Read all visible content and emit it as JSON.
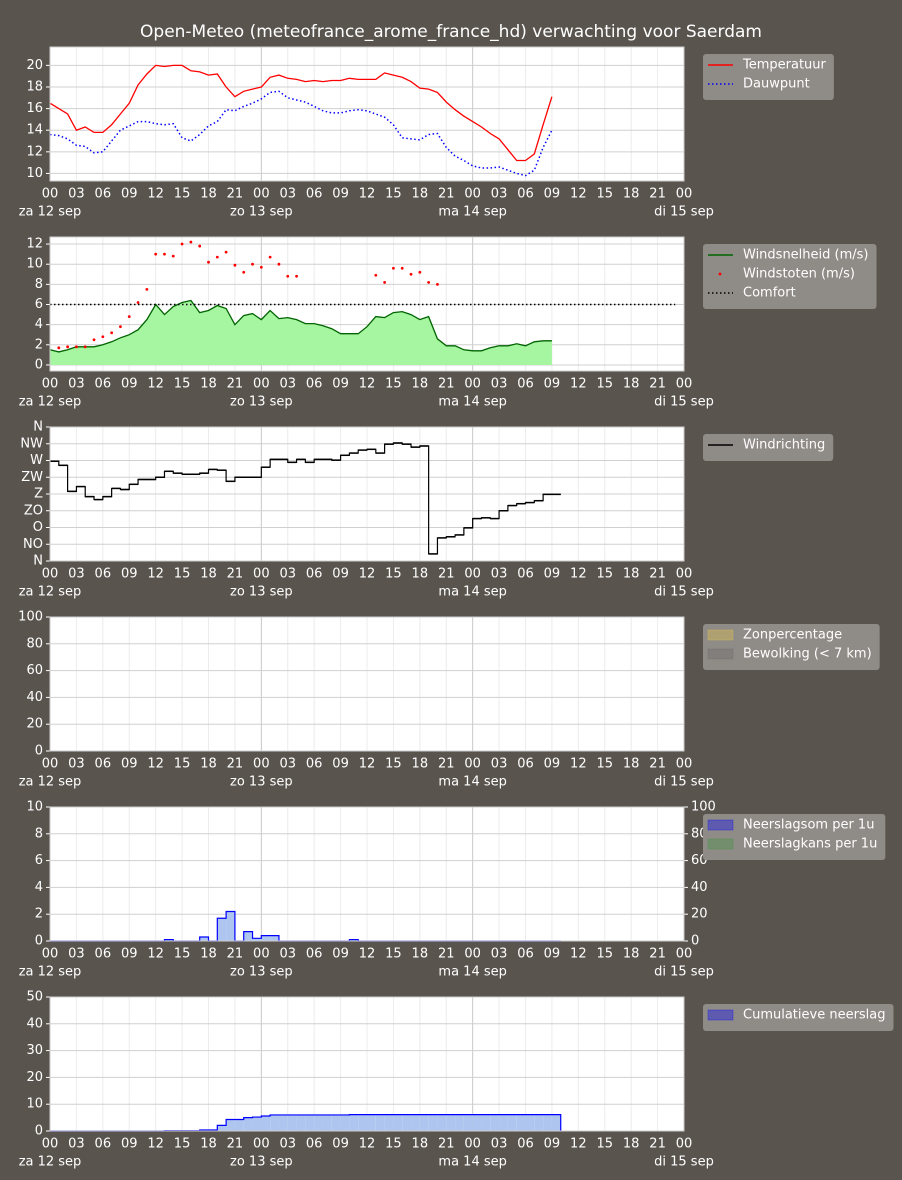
{
  "title": "Open-Meteo (meteofrance_arome_france_hd) verwachting voor Saerdam",
  "x_axis": {
    "xlim": [
      0,
      72
    ],
    "xticks": [
      {
        "value": 0,
        "label": "00"
      },
      {
        "value": 3,
        "label": "03"
      },
      {
        "value": 6,
        "label": "06"
      },
      {
        "value": 9,
        "label": "09"
      },
      {
        "value": 12,
        "label": "12"
      },
      {
        "value": 15,
        "label": "15"
      },
      {
        "value": 18,
        "label": "18"
      },
      {
        "value": 21,
        "label": "21"
      },
      {
        "value": 24,
        "label": "00"
      },
      {
        "value": 27,
        "label": "03"
      },
      {
        "value": 30,
        "label": "06"
      },
      {
        "value": 33,
        "label": "09"
      },
      {
        "value": 36,
        "label": "12"
      },
      {
        "value": 39,
        "label": "15"
      },
      {
        "value": 42,
        "label": "18"
      },
      {
        "value": 45,
        "label": "21"
      },
      {
        "value": 48,
        "label": "00"
      },
      {
        "value": 51,
        "label": "03"
      },
      {
        "value": 54,
        "label": "06"
      },
      {
        "value": 57,
        "label": "09"
      },
      {
        "value": 60,
        "label": "12"
      },
      {
        "value": 63,
        "label": "15"
      },
      {
        "value": 66,
        "label": "18"
      },
      {
        "value": 69,
        "label": "21"
      },
      {
        "value": 72,
        "label": "00"
      }
    ],
    "day_ticks": [
      {
        "value": 0,
        "label": "za 12 sep"
      },
      {
        "value": 24,
        "label": "zo 13 sep"
      },
      {
        "value": 48,
        "label": "ma 14 sep"
      },
      {
        "value": 72,
        "label": "di 15 sep"
      }
    ]
  },
  "chart_data": [
    {
      "type": "line",
      "grid": true,
      "legend": "outside right",
      "x": [
        0,
        1,
        2,
        3,
        4,
        5,
        6,
        7,
        8,
        9,
        10,
        11,
        12,
        13,
        14,
        15,
        16,
        17,
        18,
        19,
        20,
        21,
        22,
        23,
        24,
        25,
        26,
        27,
        28,
        29,
        30,
        31,
        32,
        33,
        34,
        35,
        36,
        37,
        38,
        39,
        40,
        41,
        42,
        43,
        44,
        45,
        46,
        47,
        48,
        49,
        50,
        51,
        52,
        53,
        54,
        55,
        56,
        57
      ],
      "ylim": [
        9.3,
        21.7
      ],
      "yticks": [
        10,
        12,
        14,
        16,
        18,
        20
      ],
      "series": [
        {
          "name": "Temperatuur",
          "color": "#ff0000",
          "values": [
            16.5,
            16.0,
            15.5,
            14.0,
            14.3,
            13.8,
            13.8,
            14.5,
            15.5,
            16.5,
            18.2,
            19.2,
            20.0,
            19.9,
            20.0,
            20.0,
            19.5,
            19.4,
            19.1,
            19.2,
            18.0,
            17.1,
            17.6,
            17.8,
            18.0,
            18.9,
            19.1,
            18.8,
            18.7,
            18.5,
            18.6,
            18.5,
            18.6,
            18.6,
            18.8,
            18.7,
            18.7,
            18.7,
            19.3,
            19.1,
            18.9,
            18.5,
            17.9,
            17.8,
            17.5,
            16.6,
            15.9,
            15.3,
            14.8,
            14.3,
            13.7,
            13.2,
            12.2,
            11.2,
            11.2,
            11.8,
            14.5,
            17.1
          ]
        },
        {
          "name": "Dauwpunt",
          "color": "#0000ff",
          "linestyle": "dotted",
          "values": [
            13.6,
            13.5,
            13.2,
            12.6,
            12.5,
            11.9,
            12.0,
            13.0,
            14.0,
            14.4,
            14.8,
            14.8,
            14.6,
            14.5,
            14.6,
            13.3,
            13.0,
            13.6,
            14.4,
            14.8,
            15.9,
            15.8,
            16.2,
            16.5,
            16.9,
            17.5,
            17.6,
            17.0,
            16.8,
            16.6,
            16.2,
            15.8,
            15.6,
            15.6,
            15.8,
            15.9,
            15.8,
            15.5,
            15.2,
            14.5,
            13.3,
            13.2,
            13.1,
            13.6,
            13.7,
            12.4,
            11.6,
            11.2,
            10.7,
            10.5,
            10.5,
            10.6,
            10.3,
            10.0,
            9.8,
            10.3,
            12.4,
            14.0
          ]
        }
      ]
    },
    {
      "type": "line",
      "grid": true,
      "legend": "outside right",
      "x": [
        0,
        1,
        2,
        3,
        4,
        5,
        6,
        7,
        8,
        9,
        10,
        11,
        12,
        13,
        14,
        15,
        16,
        17,
        18,
        19,
        20,
        21,
        22,
        23,
        24,
        25,
        26,
        27,
        28,
        29,
        30,
        31,
        32,
        33,
        34,
        35,
        36,
        37,
        38,
        39,
        40,
        41,
        42,
        43,
        44,
        45,
        46,
        47,
        48,
        49,
        50,
        51,
        52,
        53,
        54,
        55,
        56,
        57
      ],
      "ylim": [
        -0.6,
        12.7
      ],
      "yticks": [
        0,
        2,
        4,
        6,
        8,
        10,
        12
      ],
      "series": [
        {
          "name": "Windsnelheid (m/s)",
          "color": "#006400",
          "fill": "#a6f5a0",
          "values": [
            1.5,
            1.3,
            1.5,
            1.8,
            1.8,
            1.8,
            2.0,
            2.3,
            2.7,
            3.0,
            3.5,
            4.5,
            6.0,
            5.0,
            5.8,
            6.2,
            6.4,
            5.2,
            5.4,
            5.9,
            5.6,
            4.0,
            4.9,
            5.1,
            4.5,
            5.4,
            4.6,
            4.7,
            4.5,
            4.1,
            4.1,
            3.9,
            3.6,
            3.1,
            3.1,
            3.1,
            3.8,
            4.8,
            4.7,
            5.2,
            5.3,
            5.0,
            4.5,
            4.8,
            2.6,
            1.9,
            1.9,
            1.5,
            1.4,
            1.4,
            1.7,
            1.9,
            1.9,
            2.1,
            1.9,
            2.3,
            2.4,
            2.4
          ]
        },
        {
          "name": "Windstoten (m/s)",
          "color": "#ff0000",
          "marker": "point",
          "x": [
            1,
            2,
            3,
            4,
            5,
            6,
            7,
            8,
            9,
            10,
            11,
            12,
            13,
            14,
            15,
            16,
            17,
            18,
            19,
            20,
            21,
            22,
            23,
            24,
            25,
            26,
            27,
            28,
            37,
            38,
            39,
            40,
            41,
            42,
            43,
            44
          ],
          "values": [
            1.7,
            1.8,
            1.8,
            1.8,
            2.5,
            2.8,
            3.2,
            3.8,
            4.8,
            6.2,
            7.5,
            11.0,
            11.0,
            10.8,
            12.0,
            12.2,
            11.8,
            10.2,
            10.7,
            11.2,
            9.9,
            9.2,
            10.0,
            9.7,
            10.7,
            10.0,
            8.8,
            8.8,
            8.9,
            8.2,
            9.6,
            9.6,
            9.0,
            9.2,
            8.2,
            8.0
          ]
        },
        {
          "name": "Comfort",
          "color": "#000000",
          "linestyle": "dotted",
          "x": [
            0,
            71
          ],
          "values": [
            6,
            6
          ]
        }
      ]
    },
    {
      "type": "step",
      "grid": true,
      "legend": "outside right",
      "x": [
        0,
        1,
        2,
        3,
        4,
        5,
        6,
        7,
        8,
        9,
        10,
        11,
        12,
        13,
        14,
        15,
        16,
        17,
        18,
        19,
        20,
        21,
        22,
        23,
        24,
        25,
        26,
        27,
        28,
        29,
        30,
        31,
        32,
        33,
        34,
        35,
        36,
        37,
        38,
        39,
        40,
        41,
        42,
        43,
        44,
        45,
        46,
        47,
        48,
        49,
        50,
        51,
        52,
        53,
        54,
        55,
        56,
        57
      ],
      "ylim": [
        0,
        360
      ],
      "yticks": [
        {
          "value": 0,
          "label": "N"
        },
        {
          "value": 45,
          "label": "NO"
        },
        {
          "value": 90,
          "label": "O"
        },
        {
          "value": 135,
          "label": "ZO"
        },
        {
          "value": 180,
          "label": "Z"
        },
        {
          "value": 225,
          "label": "ZW"
        },
        {
          "value": 270,
          "label": "W"
        },
        {
          "value": 315,
          "label": "NW"
        },
        {
          "value": 360,
          "label": "N"
        }
      ],
      "series": [
        {
          "name": "Windrichting",
          "color": "#000000",
          "values": [
            268,
            257,
            187,
            200,
            173,
            165,
            173,
            195,
            192,
            206,
            219,
            219,
            225,
            241,
            236,
            233,
            233,
            236,
            246,
            244,
            214,
            225,
            225,
            225,
            252,
            273,
            273,
            265,
            273,
            265,
            273,
            273,
            271,
            284,
            290,
            298,
            300,
            290,
            314,
            317,
            314,
            306,
            309,
            19,
            62,
            65,
            70,
            89,
            114,
            116,
            114,
            135,
            149,
            154,
            157,
            162,
            179,
            179
          ]
        }
      ]
    },
    {
      "type": "area",
      "grid": true,
      "legend": "outside right",
      "ylim": [
        0,
        100
      ],
      "yticks": [
        0,
        20,
        40,
        60,
        80,
        100
      ],
      "series": [
        {
          "name": "Zonpercentage",
          "color": "#e8c84a"
        },
        {
          "name": "Bewolking (< 7 km)",
          "color": "#666666"
        }
      ]
    },
    {
      "type": "bar",
      "grid": true,
      "legend": "outside right",
      "x": [
        0,
        1,
        2,
        3,
        4,
        5,
        6,
        7,
        8,
        9,
        10,
        11,
        12,
        13,
        14,
        15,
        16,
        17,
        18,
        19,
        20,
        21,
        22,
        23,
        24,
        25,
        26,
        27,
        28,
        29,
        30,
        31,
        32,
        33,
        34,
        35,
        36,
        37,
        38,
        39,
        40,
        41,
        42,
        43,
        44,
        45,
        46,
        47,
        48,
        49,
        50,
        51,
        52,
        53,
        54,
        55,
        56,
        57
      ],
      "ylim": [
        0,
        10
      ],
      "yticks": [
        0,
        2,
        4,
        6,
        8,
        10
      ],
      "y2lim": [
        0,
        100
      ],
      "y2ticks": [
        0,
        20,
        40,
        60,
        80,
        100
      ],
      "series": [
        {
          "name": "Neerslagsom per 1u",
          "color": "#0000ff",
          "fill": "#aec6ef",
          "values": [
            0,
            0,
            0,
            0,
            0,
            0,
            0,
            0,
            0,
            0,
            0,
            0,
            0,
            0.1,
            0,
            0,
            0,
            0.3,
            0,
            1.7,
            2.2,
            0,
            0.7,
            0.2,
            0.4,
            0.4,
            0,
            0,
            0,
            0,
            0,
            0,
            0,
            0,
            0.1,
            0,
            0,
            0,
            0,
            0,
            0,
            0,
            0,
            0,
            0,
            0,
            0,
            0,
            0,
            0,
            0,
            0,
            0,
            0,
            0,
            0,
            0,
            0
          ]
        },
        {
          "name": "Neerslagkans per 1u",
          "color": "#3c963c",
          "axis": "y2"
        }
      ]
    },
    {
      "type": "bar",
      "grid": true,
      "legend": "outside right",
      "x": [
        0,
        1,
        2,
        3,
        4,
        5,
        6,
        7,
        8,
        9,
        10,
        11,
        12,
        13,
        14,
        15,
        16,
        17,
        18,
        19,
        20,
        21,
        22,
        23,
        24,
        25,
        26,
        27,
        28,
        29,
        30,
        31,
        32,
        33,
        34,
        35,
        36,
        37,
        38,
        39,
        40,
        41,
        42,
        43,
        44,
        45,
        46,
        47,
        48,
        49,
        50,
        51,
        52,
        53,
        54,
        55,
        56,
        57
      ],
      "ylim": [
        0,
        50
      ],
      "yticks": [
        0,
        10,
        20,
        30,
        40,
        50
      ],
      "series": [
        {
          "name": "Cumulatieve neerslag",
          "color": "#0000ff",
          "fill": "#aec6ef",
          "values": [
            0,
            0,
            0,
            0,
            0,
            0,
            0,
            0,
            0,
            0,
            0,
            0,
            0,
            0.1,
            0.1,
            0.1,
            0.1,
            0.4,
            0.4,
            2.1,
            4.3,
            4.3,
            5.0,
            5.2,
            5.6,
            6.0,
            6.0,
            6.0,
            6.0,
            6.0,
            6.0,
            6.0,
            6.0,
            6.0,
            6.1,
            6.1,
            6.1,
            6.1,
            6.1,
            6.1,
            6.1,
            6.1,
            6.1,
            6.1,
            6.1,
            6.1,
            6.1,
            6.1,
            6.1,
            6.1,
            6.1,
            6.1,
            6.1,
            6.1,
            6.1,
            6.1,
            6.1,
            6.1
          ]
        }
      ]
    }
  ]
}
